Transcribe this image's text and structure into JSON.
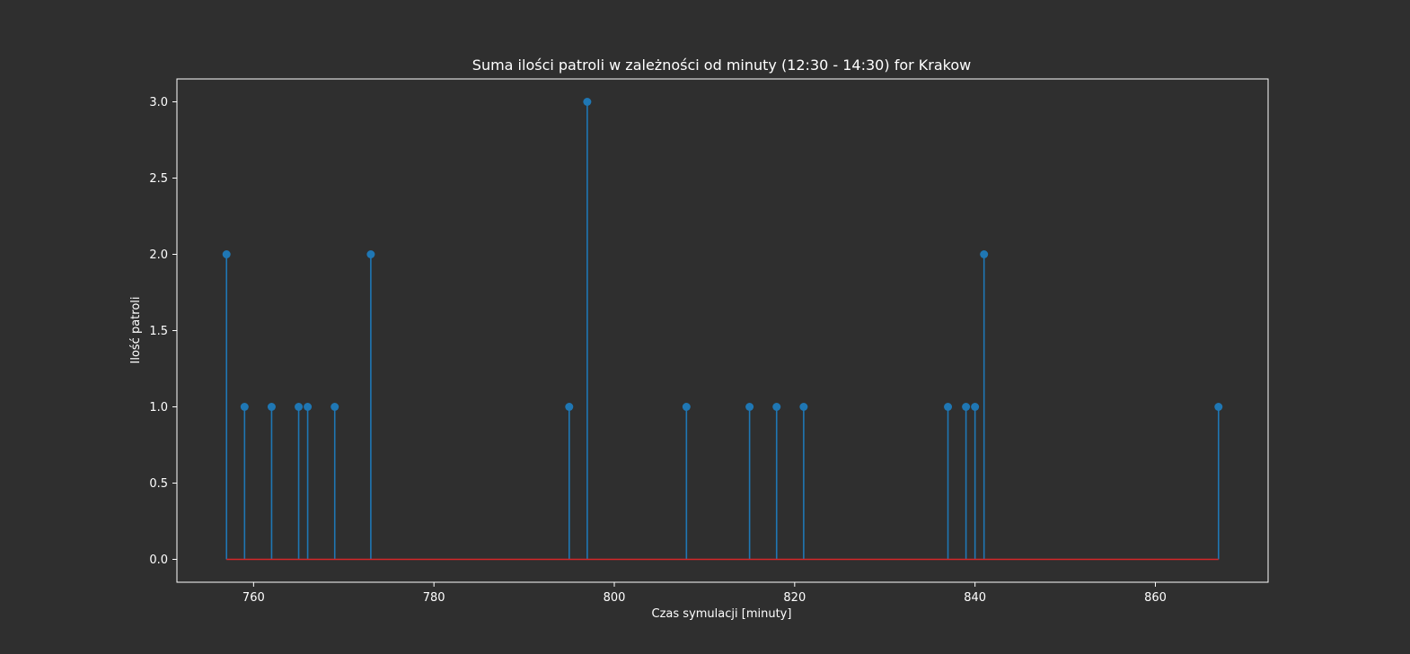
{
  "chart_data": {
    "type": "stem",
    "title": "Suma ilości patroli w zależności od minuty (12:30 - 14:30) for Krakow",
    "xlabel": "Czas symulacji [minuty]",
    "ylabel": "Ilość patroli",
    "xlim": [
      751.5,
      872.5
    ],
    "ylim": [
      -0.15,
      3.15
    ],
    "xticks": [
      760,
      780,
      800,
      820,
      840,
      860
    ],
    "xtick_labels": [
      "760",
      "780",
      "800",
      "820",
      "840",
      "860"
    ],
    "yticks": [
      0.0,
      0.5,
      1.0,
      1.5,
      2.0,
      2.5,
      3.0
    ],
    "ytick_labels": [
      "0.0",
      "0.5",
      "1.0",
      "1.5",
      "2.0",
      "2.5",
      "3.0"
    ],
    "x": [
      757,
      759,
      762,
      765,
      766,
      769,
      773,
      795,
      797,
      808,
      815,
      818,
      821,
      837,
      839,
      840,
      841,
      867
    ],
    "y": [
      2,
      1,
      1,
      1,
      1,
      1,
      2,
      1,
      3,
      1,
      1,
      1,
      1,
      1,
      1,
      1,
      2,
      1
    ],
    "baseline": 0,
    "grid": false,
    "colors": {
      "stem": "#1f77b4",
      "baseline": "#d62728",
      "background": "#2f2f2f",
      "axes_edge": "#ffffff",
      "text": "#ffffff"
    }
  }
}
